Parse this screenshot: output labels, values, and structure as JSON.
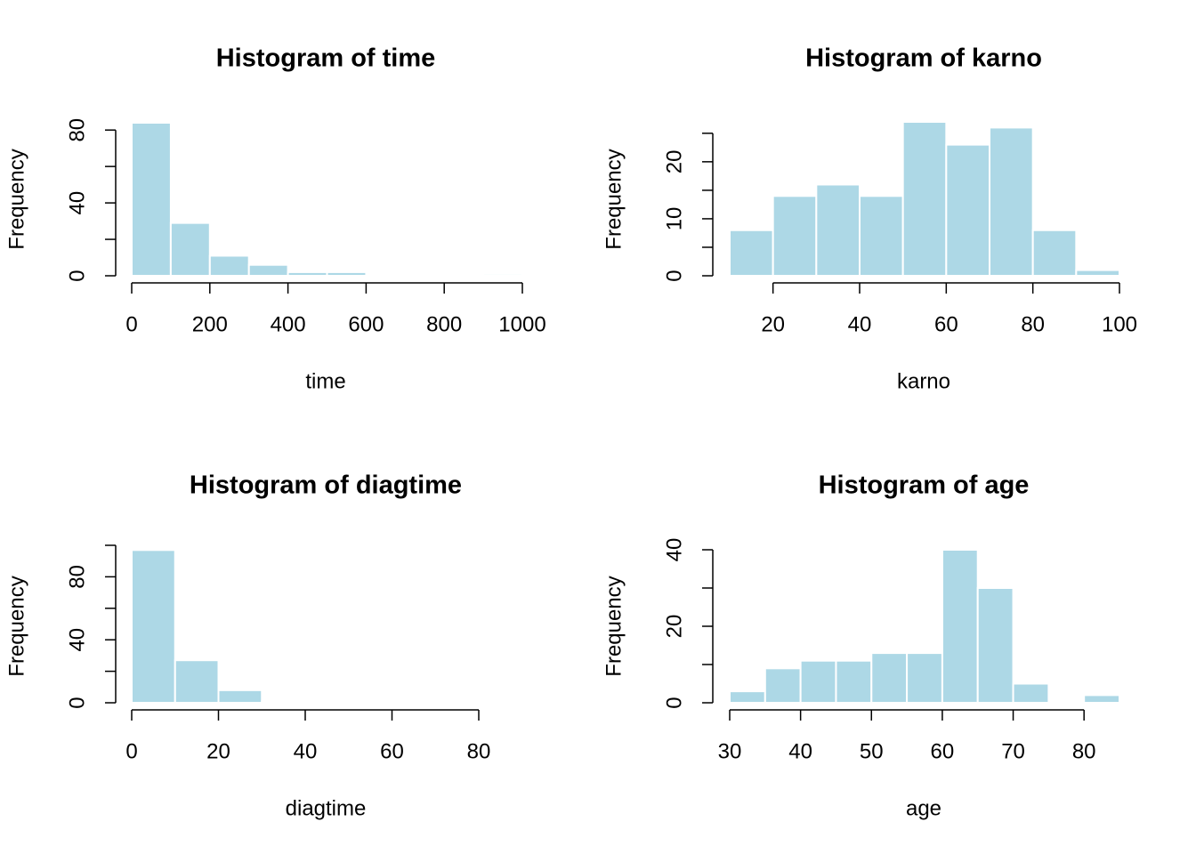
{
  "chart_data": [
    {
      "type": "histogram",
      "title": "Histogram of time",
      "xlabel": "time",
      "ylabel": "Frequency",
      "color": "#add8e6",
      "bins": [
        0,
        100,
        200,
        300,
        400,
        500,
        600,
        700,
        800,
        900,
        1000
      ],
      "counts": [
        84,
        29,
        11,
        6,
        2,
        2,
        0,
        0,
        0,
        1
      ],
      "xlim": [
        0,
        1000
      ],
      "xticks": [
        0,
        200,
        400,
        600,
        800,
        1000
      ],
      "ylim": [
        0,
        84
      ],
      "yticks": [
        0,
        40,
        80
      ],
      "yticks_minor": [
        20,
        60
      ]
    },
    {
      "type": "histogram",
      "title": "Histogram of karno",
      "xlabel": "karno",
      "ylabel": "Frequency",
      "color": "#add8e6",
      "bins": [
        10,
        20,
        30,
        40,
        50,
        60,
        70,
        80,
        90,
        100
      ],
      "counts": [
        8,
        14,
        16,
        14,
        27,
        23,
        26,
        8,
        1
      ],
      "xlim": [
        10,
        100
      ],
      "xticks": [
        20,
        40,
        60,
        80,
        100
      ],
      "ylim": [
        0,
        27
      ],
      "yticks": [
        0,
        10,
        20
      ],
      "yticks_minor": [
        5,
        15,
        25
      ]
    },
    {
      "type": "histogram",
      "title": "Histogram of diagtime",
      "xlabel": "diagtime",
      "ylabel": "Frequency",
      "color": "#add8e6",
      "bins": [
        0,
        10,
        20,
        30,
        40,
        50,
        60,
        70,
        80
      ],
      "counts": [
        97,
        27,
        8,
        1,
        0,
        0,
        0,
        0
      ],
      "xlim": [
        0,
        80
      ],
      "xticks": [
        0,
        20,
        40,
        60,
        80
      ],
      "ylim": [
        0,
        100
      ],
      "yticks": [
        0,
        40,
        80
      ],
      "yticks_minor": [
        20,
        60,
        100
      ]
    },
    {
      "type": "histogram",
      "title": "Histogram of age",
      "xlabel": "age",
      "ylabel": "Frequency",
      "color": "#add8e6",
      "bins": [
        30,
        35,
        40,
        45,
        50,
        55,
        60,
        65,
        70,
        75,
        80,
        85
      ],
      "counts": [
        3,
        9,
        11,
        11,
        13,
        13,
        40,
        30,
        5,
        0,
        2
      ],
      "xlim": [
        30,
        85
      ],
      "xticks": [
        30,
        40,
        50,
        60,
        70,
        80
      ],
      "ylim": [
        0,
        40
      ],
      "yticks": [
        0,
        20,
        40
      ],
      "yticks_minor": [
        10,
        30
      ]
    }
  ]
}
